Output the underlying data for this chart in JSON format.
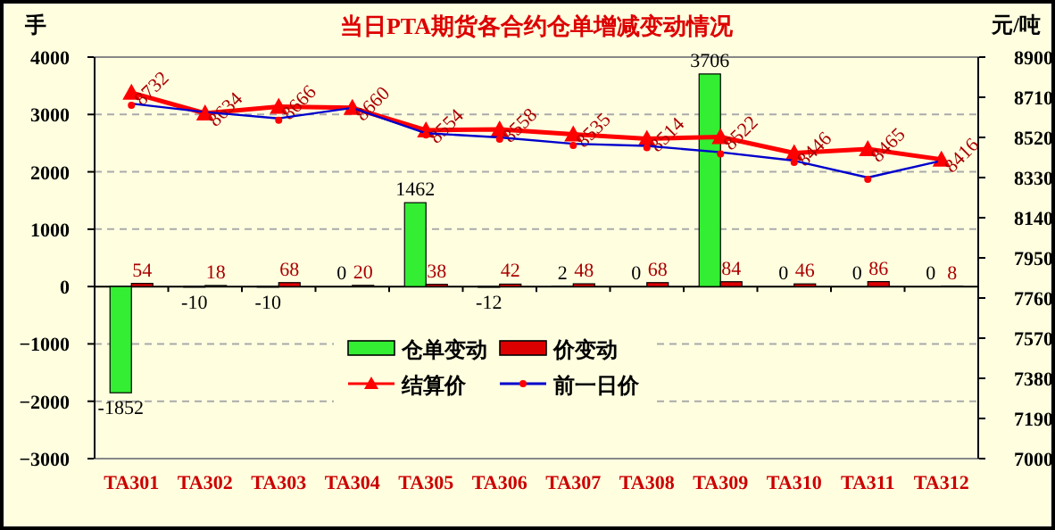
{
  "chart_data": {
    "type": "bar",
    "title": "当日PTA期货各合约仓单增减变动情况",
    "ylabel": "手",
    "y2label": "元/吨",
    "categories": [
      "TA301",
      "TA302",
      "TA303",
      "TA304",
      "TA305",
      "TA306",
      "TA307",
      "TA308",
      "TA309",
      "TA310",
      "TA311",
      "TA312"
    ],
    "series": [
      {
        "name": "仓单变动",
        "color": "#33ee33",
        "values": [
          -1852,
          -10,
          -10,
          0,
          1462,
          -12,
          2,
          0,
          3706,
          0,
          0,
          0
        ],
        "value_labels": [
          "-1852",
          "-10",
          "-10",
          "0",
          "1462",
          "-12",
          "2",
          "0",
          "3706",
          "0",
          "0",
          "0"
        ]
      },
      {
        "name": "价变动",
        "color": "#dd0000",
        "values": [
          54,
          18,
          68,
          20,
          38,
          42,
          48,
          68,
          84,
          46,
          86,
          8
        ],
        "value_labels": [
          "54",
          "18",
          "68",
          "20",
          "38",
          "42",
          "48",
          "68",
          "84",
          "46",
          "86",
          "8"
        ]
      },
      {
        "name": "结算价",
        "type": "line",
        "axis": "y2",
        "color": "#ff0000",
        "marker": "triangle",
        "values": [
          8732,
          8634,
          8666,
          8660,
          8554,
          8558,
          8535,
          8514,
          8522,
          8446,
          8465,
          8416
        ],
        "value_labels": [
          "8732",
          "8634",
          "8666",
          "8660",
          "8554",
          "8558",
          "8535",
          "8514",
          "8522",
          "8446",
          "8465",
          "8416"
        ]
      },
      {
        "name": "前一日价",
        "type": "line",
        "axis": "y2",
        "color": "#0000cc",
        "marker": "circle",
        "values": [
          8680,
          8640,
          8610,
          8660,
          8540,
          8520,
          8490,
          8480,
          8450,
          8410,
          8330,
          8410
        ]
      }
    ],
    "ylim": [
      -3000,
      4000
    ],
    "yticks": [
      -3000,
      -2000,
      -1000,
      0,
      1000,
      2000,
      3000,
      4000
    ],
    "y2lim": [
      7000,
      8900
    ],
    "y2ticks": [
      7000,
      7190,
      7380,
      7570,
      7760,
      7950,
      8140,
      8330,
      8520,
      8710,
      8900
    ],
    "grid": "y",
    "legend": "bottom"
  }
}
